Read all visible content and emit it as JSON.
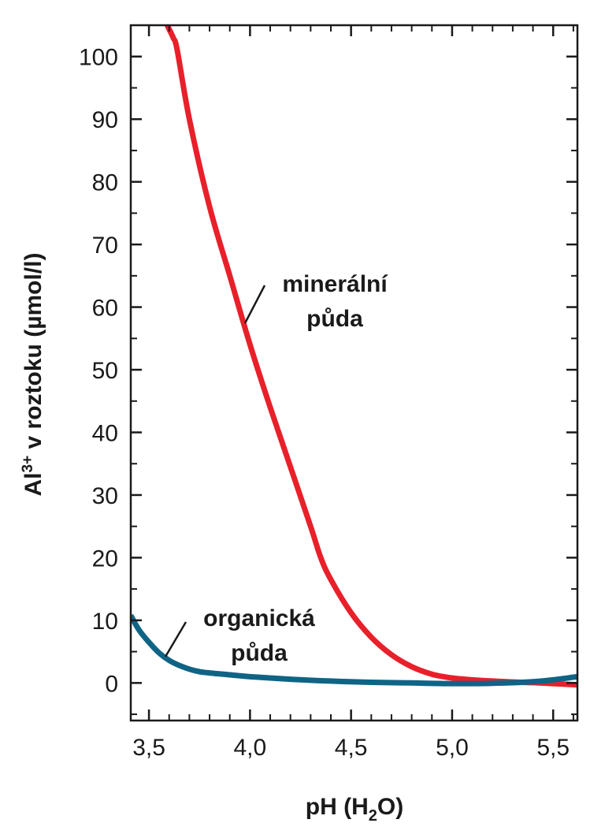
{
  "chart_data": {
    "type": "line",
    "title": "",
    "xlabel": {
      "main": "pH (H",
      "sub": "2",
      "tail": "O)"
    },
    "ylabel": {
      "main": "Al",
      "sup": "3+",
      "tail": " v roztoku (µmol/l)"
    },
    "xlim": [
      3.41,
      5.62
    ],
    "ylim": [
      -6,
      105
    ],
    "xticks": [
      {
        "value": 3.5,
        "label": "3,5"
      },
      {
        "value": 4.0,
        "label": "4,0"
      },
      {
        "value": 4.5,
        "label": "4,5"
      },
      {
        "value": 5.0,
        "label": "5,0"
      },
      {
        "value": 5.5,
        "label": "5,5"
      }
    ],
    "yticks": [
      {
        "value": 0,
        "label": "0"
      },
      {
        "value": 10,
        "label": "10"
      },
      {
        "value": 20,
        "label": "20"
      },
      {
        "value": 30,
        "label": "30"
      },
      {
        "value": 40,
        "label": "40"
      },
      {
        "value": 50,
        "label": "50"
      },
      {
        "value": 60,
        "label": "60"
      },
      {
        "value": 70,
        "label": "70"
      },
      {
        "value": 80,
        "label": "80"
      },
      {
        "value": 90,
        "label": "90"
      },
      {
        "value": 100,
        "label": "100"
      }
    ],
    "x_minor_step": 0.1,
    "y_minor_step": 5,
    "grid": false,
    "series": [
      {
        "color": "#e8202a",
        "x": [
          3.59,
          3.62,
          3.64,
          3.7,
          3.8,
          3.9,
          4.0,
          4.1,
          4.2,
          4.3,
          4.35,
          4.4,
          4.5,
          4.6,
          4.7,
          4.8,
          4.9,
          5.0,
          5.1,
          5.2,
          5.3,
          5.4,
          5.5,
          5.62
        ],
        "y": [
          105,
          103,
          101,
          90,
          76,
          65,
          54,
          44,
          34.5,
          25,
          20,
          16.5,
          11.2,
          7.3,
          4.5,
          2.6,
          1.4,
          0.8,
          0.5,
          0.3,
          0.15,
          0.05,
          -0.1,
          -0.3
        ]
      },
      {
        "color": "#0f6485",
        "x": [
          3.41,
          3.45,
          3.5,
          3.55,
          3.6,
          3.65,
          3.7,
          3.75,
          3.8,
          3.9,
          4.0,
          4.2,
          4.4,
          4.6,
          4.8,
          5.0,
          5.2,
          5.4,
          5.5,
          5.62
        ],
        "y": [
          10.8,
          8.5,
          6.5,
          4.8,
          3.6,
          2.8,
          2.2,
          1.8,
          1.6,
          1.3,
          1.0,
          0.6,
          0.3,
          0.1,
          0.0,
          -0.1,
          -0.05,
          0.2,
          0.5,
          1.0
        ]
      }
    ],
    "annotations": [
      {
        "lines": [
          "minerální",
          "půda"
        ],
        "series": 0
      },
      {
        "lines": [
          "organická",
          "půda"
        ],
        "series": 1
      }
    ]
  }
}
